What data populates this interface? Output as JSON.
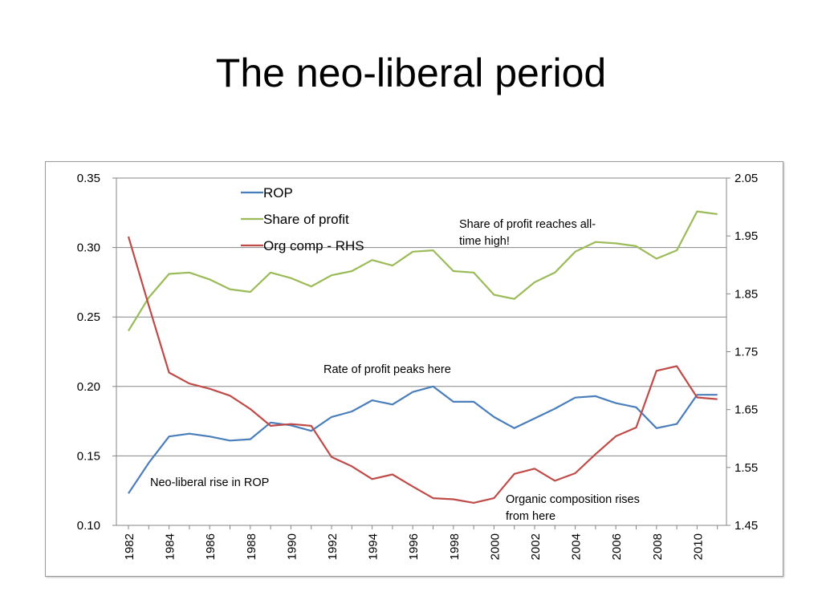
{
  "slide": {
    "title": "The neo-liberal period"
  },
  "chart_data": {
    "type": "line",
    "title": "",
    "xlabel": "",
    "ylabel": "",
    "x": [
      1982,
      1983,
      1984,
      1985,
      1986,
      1987,
      1988,
      1989,
      1990,
      1991,
      1992,
      1993,
      1994,
      1995,
      1996,
      1997,
      1998,
      1999,
      2000,
      2001,
      2002,
      2003,
      2004,
      2005,
      2006,
      2007,
      2008,
      2009,
      2010,
      2011
    ],
    "x_tick_labels": [
      "1982",
      "1984",
      "1986",
      "1988",
      "1990",
      "1992",
      "1994",
      "1996",
      "1998",
      "2000",
      "2002",
      "2004",
      "2006",
      "2008",
      "2010"
    ],
    "y_left": {
      "range": [
        0.1,
        0.35
      ],
      "tick_labels": [
        "0.35",
        "0.30",
        "0.25",
        "0.20",
        "0.15",
        "0.10"
      ]
    },
    "y_right": {
      "range": [
        1.45,
        2.05
      ],
      "tick_labels": [
        "2.05",
        "1.95",
        "1.85",
        "1.75",
        "1.65",
        "1.55",
        "1.45"
      ]
    },
    "grid": "horizontal",
    "legend_position": "top-left",
    "series": [
      {
        "name": "ROP",
        "axis": "left",
        "color": "#4a7ebb",
        "values": [
          0.123,
          0.145,
          0.164,
          0.166,
          0.164,
          0.161,
          0.162,
          0.174,
          0.172,
          0.168,
          0.178,
          0.182,
          0.19,
          0.187,
          0.196,
          0.2,
          0.189,
          0.189,
          0.178,
          0.17,
          0.177,
          0.184,
          0.192,
          0.193,
          0.188,
          0.185,
          0.17,
          0.173,
          0.194,
          0.194
        ]
      },
      {
        "name": "Share of profit",
        "axis": "left",
        "color": "#9bbb59",
        "values": [
          0.24,
          0.264,
          0.281,
          0.282,
          0.277,
          0.27,
          0.268,
          0.282,
          0.278,
          0.272,
          0.28,
          0.283,
          0.291,
          0.287,
          0.297,
          0.298,
          0.283,
          0.282,
          0.266,
          0.263,
          0.275,
          0.282,
          0.297,
          0.304,
          0.303,
          0.301,
          0.292,
          0.298,
          0.326,
          0.324
        ]
      },
      {
        "name": "Org comp - RHS",
        "axis": "right",
        "color": "#be4b48",
        "values": [
          1.949,
          1.83,
          1.714,
          1.695,
          1.686,
          1.674,
          1.651,
          1.622,
          1.625,
          1.622,
          1.568,
          1.552,
          1.53,
          1.538,
          1.517,
          1.497,
          1.495,
          1.489,
          1.497,
          1.539,
          1.548,
          1.527,
          1.54,
          1.573,
          1.604,
          1.619,
          1.717,
          1.725,
          1.671,
          1.668
        ]
      }
    ],
    "annotations": [
      {
        "id": "share-high",
        "lines": [
          "Share of profit reaches all-",
          "time high!"
        ]
      },
      {
        "id": "rop-peak",
        "lines": [
          "Rate of profit peaks here"
        ]
      },
      {
        "id": "rop-rise",
        "lines": [
          "Neo-liberal rise in ROP"
        ]
      },
      {
        "id": "oc-rise",
        "lines": [
          "Organic composition rises",
          "from here"
        ]
      }
    ]
  }
}
